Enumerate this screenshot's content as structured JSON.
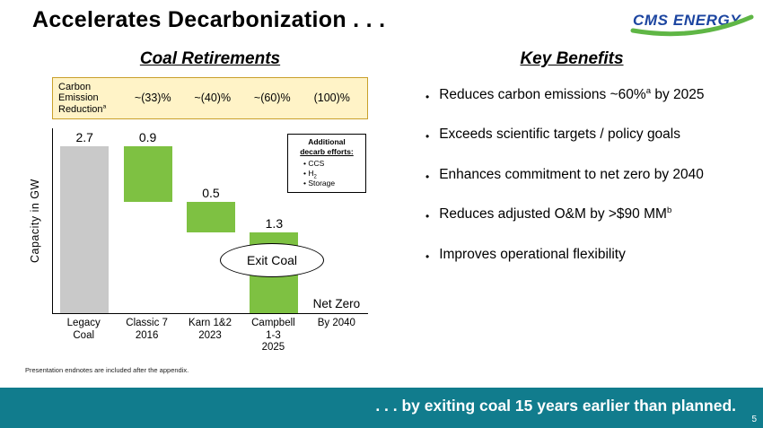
{
  "slide": {
    "title": "Accelerates Decarbonization . . .",
    "page_number": "5",
    "footer_banner": ". . . by exiting coal 15 years earlier than planned.",
    "footnote": "Presentation endnotes are included after the appendix."
  },
  "logo": {
    "text": "CMS ENERGY"
  },
  "left": {
    "heading": "Coal Retirements",
    "reduction_box": {
      "label": "Carbon Emission Reduction",
      "label_sup": "a",
      "values": [
        "~(33)%",
        "~(40)%",
        "~(60)%",
        "(100)%"
      ]
    },
    "y_axis_label": "Capacity in GW",
    "exit_coal_label": "Exit Coal",
    "net_zero_label": "Net Zero",
    "decarb_box": {
      "title_line1": "Additional",
      "title_line2": "decarb efforts:",
      "items": [
        {
          "text": "CCS",
          "sub": ""
        },
        {
          "text": "H",
          "sub": "2"
        },
        {
          "text": "Storage",
          "sub": ""
        }
      ]
    }
  },
  "right": {
    "heading": "Key Benefits",
    "bullets": [
      {
        "before": "Reduces carbon emissions ~60%",
        "sup": "a",
        "after": " by 2025"
      },
      {
        "before": "Exceeds scientific targets / policy goals",
        "sup": "",
        "after": ""
      },
      {
        "before": "Enhances commitment to net zero by 2040",
        "sup": "",
        "after": ""
      },
      {
        "before": "Reduces adjusted O&M by >$90 MM",
        "sup": "b",
        "after": ""
      },
      {
        "before": "Improves operational flexibility",
        "sup": "",
        "after": ""
      }
    ]
  },
  "chart_data": {
    "type": "bar",
    "subtype": "waterfall",
    "title": "Coal Retirements",
    "ylabel": "Capacity in GW",
    "ylim": [
      0,
      3.0
    ],
    "grid": false,
    "categories": [
      "Legacy\nCoal",
      "Classic 7\n2016",
      "Karn 1&2\n2023",
      "Campbell\n1-3\n2025",
      "By 2040"
    ],
    "values": [
      2.7,
      0.9,
      0.5,
      1.3,
      null
    ],
    "value_labels": [
      "2.7",
      "0.9",
      "0.5",
      "1.3",
      ""
    ],
    "bar_colors": [
      "#C9C9C9",
      "#7EC142",
      "#7EC142",
      "#7EC142",
      null
    ],
    "annotations": [
      {
        "text": "Net Zero",
        "category_index": 4
      }
    ]
  },
  "colors": {
    "accent_teal": "#117C8D",
    "bar_green": "#7EC142",
    "bar_gray": "#C9C9C9",
    "reduction_box_bg": "#FFF3C7",
    "reduction_box_border": "#C9A02B",
    "logo_blue": "#1C45A0",
    "logo_green": "#5FB645"
  }
}
